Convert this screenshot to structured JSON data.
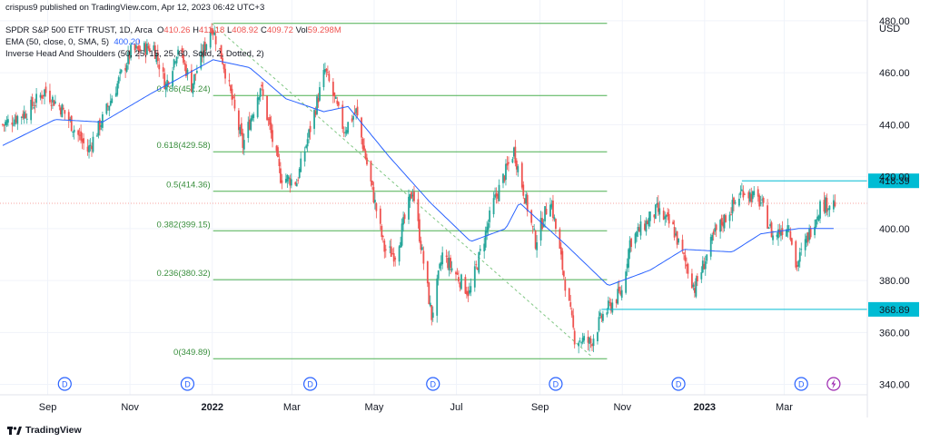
{
  "publisher_line": "crispus9 published on TradingView.com, Apr 12, 2023 06:42 UTC+3",
  "legend": {
    "symbol": "SPDR S&P 500 ETF TRUST, 1D, Arca",
    "o_label": "O",
    "o": "410.26",
    "h_label": "H",
    "h": "411.18",
    "l_label": "L",
    "l": "408.92",
    "c_label": "C",
    "c": "409.72",
    "vol_label": "Vol",
    "vol": "59.298M",
    "ema": "EMA (50, close, 0, SMA, 5)",
    "ema_value": "400.20",
    "pattern": "Inverse Head And Shoulders (50, 25, 15, 25, 60, Solid, 2, Dotted, 2)"
  },
  "currency": "USD",
  "brand": "TradingView",
  "colors": {
    "up": "#26a69a",
    "down": "#ef5350",
    "ema": "#2962ff",
    "fib": "#4caf50",
    "hline": "#00bcd4",
    "marker": "#2962ff",
    "bolt": "#9c27b0"
  },
  "chart_data": {
    "type": "candlestick",
    "y_axis": {
      "ticks": [
        340,
        360,
        380,
        400,
        420,
        440,
        460,
        480
      ],
      "range": [
        336,
        488
      ]
    },
    "x_axis": {
      "ticks": [
        "Sep",
        "Nov",
        "2022",
        "Mar",
        "May",
        "Jul",
        "Sep",
        "Nov",
        "2023",
        "Mar"
      ],
      "range": [
        "2021-07-31",
        "2023-05-05"
      ]
    },
    "price_path": [
      [
        "2021-08-02",
        440
      ],
      [
        "2021-08-20",
        445
      ],
      [
        "2021-09-02",
        453
      ],
      [
        "2021-09-15",
        446
      ],
      [
        "2021-10-04",
        430
      ],
      [
        "2021-10-15",
        442
      ],
      [
        "2021-11-05",
        468
      ],
      [
        "2021-11-22",
        470
      ],
      [
        "2021-12-01",
        455
      ],
      [
        "2021-12-10",
        470
      ],
      [
        "2021-12-20",
        455
      ],
      [
        "2022-01-04",
        478
      ],
      [
        "2022-01-12",
        465
      ],
      [
        "2022-01-27",
        432
      ],
      [
        "2022-02-09",
        455
      ],
      [
        "2022-02-24",
        420
      ],
      [
        "2022-03-08",
        418
      ],
      [
        "2022-03-29",
        461
      ],
      [
        "2022-04-12",
        438
      ],
      [
        "2022-04-21",
        445
      ],
      [
        "2022-05-12",
        392
      ],
      [
        "2022-05-20",
        390
      ],
      [
        "2022-06-02",
        415
      ],
      [
        "2022-06-16",
        366
      ],
      [
        "2022-06-24",
        390
      ],
      [
        "2022-07-14",
        375
      ],
      [
        "2022-08-01",
        410
      ],
      [
        "2022-08-16",
        430
      ],
      [
        "2022-09-01",
        395
      ],
      [
        "2022-09-12",
        412
      ],
      [
        "2022-09-30",
        358
      ],
      [
        "2022-10-12",
        356
      ],
      [
        "2022-10-20",
        366
      ],
      [
        "2022-11-04",
        376
      ],
      [
        "2022-11-10",
        395
      ],
      [
        "2022-11-30",
        407
      ],
      [
        "2022-12-12",
        400
      ],
      [
        "2022-12-28",
        377
      ],
      [
        "2023-01-12",
        398
      ],
      [
        "2023-02-02",
        415
      ],
      [
        "2023-02-15",
        410
      ],
      [
        "2023-02-24",
        397
      ],
      [
        "2023-03-08",
        402
      ],
      [
        "2023-03-13",
        385
      ],
      [
        "2023-03-31",
        409
      ],
      [
        "2023-04-11",
        410
      ]
    ],
    "ema_path": [
      [
        "2021-08-02",
        432
      ],
      [
        "2021-09-10",
        442
      ],
      [
        "2021-10-15",
        441
      ],
      [
        "2021-11-20",
        452
      ],
      [
        "2022-01-05",
        465
      ],
      [
        "2022-02-01",
        462
      ],
      [
        "2022-02-28",
        450
      ],
      [
        "2022-03-28",
        445
      ],
      [
        "2022-04-15",
        447
      ],
      [
        "2022-05-15",
        428
      ],
      [
        "2022-06-15",
        410
      ],
      [
        "2022-07-15",
        395
      ],
      [
        "2022-08-10",
        400
      ],
      [
        "2022-08-20",
        410
      ],
      [
        "2022-09-25",
        393
      ],
      [
        "2022-10-25",
        378
      ],
      [
        "2022-11-25",
        384
      ],
      [
        "2022-12-20",
        392
      ],
      [
        "2023-01-25",
        391
      ],
      [
        "2023-02-15",
        398
      ],
      [
        "2023-03-15",
        400
      ],
      [
        "2023-04-11",
        400
      ]
    ],
    "fibonacci": [
      {
        "label": "",
        "value": 479
      },
      {
        "label": "0.786(451.24)",
        "value": 451.24
      },
      {
        "label": "0.618(429.58)",
        "value": 429.58
      },
      {
        "label": "0.5(414.36)",
        "value": 414.36
      },
      {
        "label": "0.382(399.15)",
        "value": 399.15
      },
      {
        "label": "0.236(380.32)",
        "value": 380.32
      },
      {
        "label": "0(349.89)",
        "value": 349.89
      }
    ],
    "fib_range": [
      "2022-01-01",
      "2022-10-20"
    ],
    "trendline": [
      [
        "2022-01-04",
        479
      ],
      [
        "2022-10-12",
        351
      ]
    ],
    "horizontal_levels": [
      {
        "label": "418.39",
        "value": 418.39,
        "from": "2023-02-01"
      },
      {
        "label": "368.89",
        "value": 368.89,
        "from": "2022-10-20"
      }
    ],
    "last_price": 409.72,
    "dividend_markers": [
      {
        "date": "2021-09-17",
        "label": "D"
      },
      {
        "date": "2021-12-17",
        "label": "D"
      },
      {
        "date": "2022-03-18",
        "label": "D"
      },
      {
        "date": "2022-06-17",
        "label": "D"
      },
      {
        "date": "2022-09-16",
        "label": "D"
      },
      {
        "date": "2022-12-16",
        "label": "D"
      },
      {
        "date": "2023-03-17",
        "label": "D"
      }
    ],
    "event_marker": {
      "date": "2023-04-10"
    }
  }
}
